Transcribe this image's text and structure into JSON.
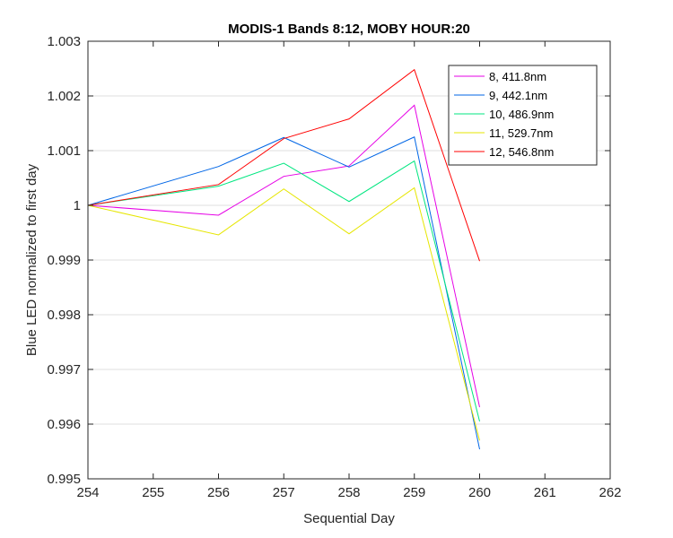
{
  "chart_data": {
    "type": "line",
    "title": "MODIS-1 Bands 8:12, MOBY HOUR:20",
    "xlabel": "Sequential Day",
    "ylabel": "Blue LED normalized to first day",
    "xlim": [
      254,
      262
    ],
    "ylim": [
      0.995,
      1.003
    ],
    "xticks": [
      254,
      255,
      256,
      257,
      258,
      259,
      260,
      261,
      262
    ],
    "yticks": [
      0.995,
      0.996,
      0.997,
      0.998,
      0.999,
      1,
      1.001,
      1.002,
      1.003
    ],
    "ytick_labels": [
      "0.995",
      "0.996",
      "0.997",
      "0.998",
      "0.999",
      "1",
      "1.001",
      "1.002",
      "1.003"
    ],
    "grid": "horizontal",
    "legend_position": "top-right",
    "x": [
      254,
      256,
      257,
      258,
      259,
      260
    ],
    "series": [
      {
        "name": "8, 411.8nm",
        "color": "#E600E6",
        "values": [
          1.0,
          0.99982,
          1.00053,
          1.00072,
          1.00183,
          0.99631
        ]
      },
      {
        "name": "9, 442.1nm",
        "color": "#0066E6",
        "values": [
          1.0,
          1.00071,
          1.00124,
          1.0007,
          1.00125,
          0.99554
        ]
      },
      {
        "name": "10, 486.9nm",
        "color": "#00E680",
        "values": [
          1.0,
          1.00035,
          1.00077,
          1.00007,
          1.00081,
          0.99605
        ]
      },
      {
        "name": "11, 529.7nm",
        "color": "#E6E600",
        "values": [
          1.0,
          0.99946,
          1.0003,
          0.99948,
          1.00032,
          0.9957
        ]
      },
      {
        "name": "12, 546.8nm",
        "color": "#FF0000",
        "values": [
          1.0,
          1.00038,
          1.00122,
          1.00158,
          1.00248,
          0.99898
        ]
      }
    ]
  }
}
